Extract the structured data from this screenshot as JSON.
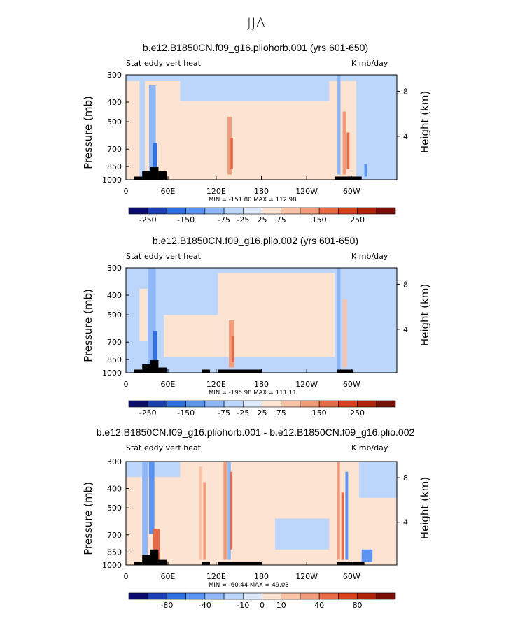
{
  "figure_title": "JJA",
  "colorbar_colors": [
    "#0b0b6d",
    "#1b3fb3",
    "#2f6fe0",
    "#5b93f1",
    "#8fb6f7",
    "#bcd6fb",
    "#dde9fb",
    "#fde4d2",
    "#f8c3a6",
    "#f09c7b",
    "#e76a46",
    "#d8411d",
    "#b0220a",
    "#7a0f0a"
  ],
  "chart_data": [
    {
      "type": "heatmap",
      "title": "b.e12.B1850CN.f09_g16.pliohorb.001 (yrs 601-650)",
      "left_label": "Stat eddy vert heat",
      "right_label": "K mb/day",
      "ylabel": "Pressure (mb)",
      "y2label": "Height (km)",
      "y_ticks": [
        "300",
        "400",
        "500",
        "700",
        "850",
        "1000"
      ],
      "y2_ticks": [
        "8",
        "4"
      ],
      "x_ticks": [
        "0",
        "60E",
        "120E",
        "180",
        "120W",
        "60W"
      ],
      "min_max": "MIN = -151.80   MAX = 112.98",
      "colorbar_labels": [
        "-250",
        "-150",
        "-75",
        "-25",
        "25",
        "75",
        "150",
        "250"
      ]
    },
    {
      "type": "heatmap",
      "title": "b.e12.B1850CN.f09_g16.plio.002 (yrs 601-650)",
      "left_label": "Stat eddy vert heat",
      "right_label": "K mb/day",
      "ylabel": "Pressure (mb)",
      "y2label": "Height (km)",
      "y_ticks": [
        "300",
        "400",
        "500",
        "700",
        "850",
        "1000"
      ],
      "y2_ticks": [
        "8",
        "4"
      ],
      "x_ticks": [
        "0",
        "60E",
        "120E",
        "180",
        "120W",
        "60W"
      ],
      "min_max": "MIN = -195.98   MAX = 111.11",
      "colorbar_labels": [
        "-250",
        "-150",
        "-75",
        "-25",
        "25",
        "75",
        "150",
        "250"
      ]
    },
    {
      "type": "heatmap",
      "title": "b.e12.B1850CN.f09_g16.pliohorb.001 - b.e12.B1850CN.f09_g16.plio.002",
      "left_label": "Stat eddy vert heat",
      "right_label": "K mb/day",
      "ylabel": "Pressure (mb)",
      "y2label": "Height (km)",
      "y_ticks": [
        "300",
        "400",
        "500",
        "700",
        "850",
        "1000"
      ],
      "y2_ticks": [
        "8",
        "4"
      ],
      "x_ticks": [
        "0",
        "60E",
        "120E",
        "180",
        "120W",
        "60W"
      ],
      "min_max": "MIN = -60.44   MAX = 49.03",
      "colorbar_labels": [
        "-80",
        "-40",
        "-10",
        "0",
        "10",
        "40",
        "80"
      ]
    }
  ]
}
